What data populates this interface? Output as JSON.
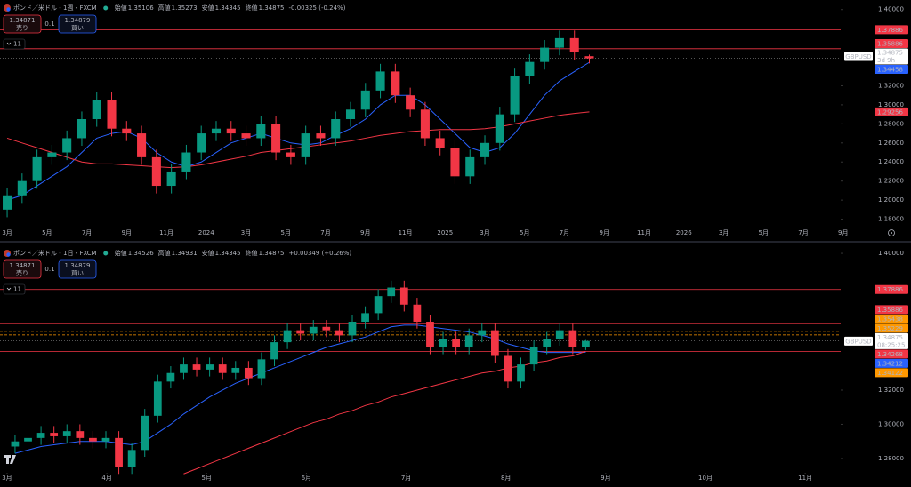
{
  "chart_data": [
    {
      "type": "candlestick",
      "title": "ポンド／米ドル・1週・FXCM",
      "ohlc_labels": [
        "始値",
        "高値",
        "安値",
        "終値"
      ],
      "ohlc_values": [
        1.35106,
        1.35273,
        1.34345,
        1.34875
      ],
      "change": "-0.00325 (-0.24%)",
      "change_color": "#f23645",
      "sell": {
        "price": 1.34871,
        "label": "売り"
      },
      "spread": 0.1,
      "buy": {
        "price": 1.34879,
        "label": "買い"
      },
      "badge": 11,
      "up_color": "#089981",
      "down_color": "#f23645",
      "x": [
        0,
        0.75,
        1.5,
        2.25,
        3,
        3.75,
        4.5,
        5.25,
        6,
        6.75,
        7.5,
        8.25,
        9,
        9.75,
        10.5,
        11.25,
        12,
        12.75,
        13.5,
        14.25,
        15,
        15.75,
        16.5,
        17.25,
        18,
        18.75,
        19.5,
        20.25,
        21,
        21.75,
        22.5,
        23.25,
        24,
        24.75,
        25.5,
        26.25,
        27,
        27.75,
        28.5,
        29.25
      ],
      "open": [
        1.19,
        1.205,
        1.22,
        1.245,
        1.25,
        1.265,
        1.285,
        1.305,
        1.275,
        1.27,
        1.245,
        1.215,
        1.23,
        1.25,
        1.27,
        1.275,
        1.27,
        1.265,
        1.28,
        1.25,
        1.245,
        1.27,
        1.265,
        1.285,
        1.295,
        1.315,
        1.335,
        1.31,
        1.295,
        1.265,
        1.255,
        1.225,
        1.245,
        1.26,
        1.29,
        1.33,
        1.345,
        1.36,
        1.37,
        1.35106
      ],
      "high": [
        1.213,
        1.228,
        1.253,
        1.258,
        1.273,
        1.293,
        1.313,
        1.313,
        1.283,
        1.278,
        1.253,
        1.238,
        1.258,
        1.278,
        1.283,
        1.283,
        1.278,
        1.288,
        1.288,
        1.258,
        1.278,
        1.278,
        1.293,
        1.303,
        1.323,
        1.343,
        1.343,
        1.318,
        1.303,
        1.273,
        1.263,
        1.253,
        1.268,
        1.298,
        1.338,
        1.353,
        1.368,
        1.378,
        1.378,
        1.35273
      ],
      "low": [
        1.182,
        1.197,
        1.212,
        1.237,
        1.242,
        1.257,
        1.277,
        1.267,
        1.262,
        1.237,
        1.207,
        1.207,
        1.222,
        1.242,
        1.262,
        1.262,
        1.257,
        1.257,
        1.242,
        1.237,
        1.237,
        1.257,
        1.257,
        1.277,
        1.287,
        1.307,
        1.302,
        1.287,
        1.257,
        1.247,
        1.217,
        1.217,
        1.237,
        1.252,
        1.282,
        1.322,
        1.337,
        1.352,
        1.347,
        1.34345
      ],
      "close": [
        1.205,
        1.22,
        1.245,
        1.25,
        1.265,
        1.285,
        1.305,
        1.275,
        1.27,
        1.245,
        1.215,
        1.23,
        1.25,
        1.27,
        1.275,
        1.27,
        1.265,
        1.28,
        1.25,
        1.245,
        1.27,
        1.265,
        1.285,
        1.295,
        1.315,
        1.335,
        1.31,
        1.295,
        1.265,
        1.255,
        1.225,
        1.245,
        1.26,
        1.29,
        1.33,
        1.345,
        1.36,
        1.37,
        1.355,
        1.34875
      ],
      "series": [
        {
          "color": "#2962ff",
          "values": [
            1.2,
            1.205,
            1.215,
            1.225,
            1.235,
            1.25,
            1.265,
            1.27,
            1.272,
            1.265,
            1.25,
            1.24,
            1.235,
            1.24,
            1.25,
            1.26,
            1.265,
            1.27,
            1.265,
            1.26,
            1.258,
            1.26,
            1.268,
            1.275,
            1.285,
            1.3,
            1.31,
            1.31,
            1.3,
            1.285,
            1.27,
            1.255,
            1.25,
            1.255,
            1.27,
            1.29,
            1.31,
            1.325,
            1.335,
            1.34458
          ]
        },
        {
          "color": "#f23645",
          "values": [
            1.265,
            1.26,
            1.255,
            1.25,
            1.245,
            1.24,
            1.238,
            1.238,
            1.237,
            1.236,
            1.235,
            1.234,
            1.235,
            1.237,
            1.24,
            1.243,
            1.246,
            1.25,
            1.252,
            1.254,
            1.256,
            1.258,
            1.26,
            1.262,
            1.265,
            1.268,
            1.27,
            1.272,
            1.273,
            1.274,
            1.274,
            1.274,
            1.275,
            1.277,
            1.28,
            1.283,
            1.286,
            1.289,
            1.291,
            1.29256
          ]
        }
      ],
      "levels": [
        {
          "value": 1.37886,
          "color": "#f23645",
          "style": "solid"
        },
        {
          "value": 1.35886,
          "color": "#f23645",
          "style": "solid"
        },
        {
          "value": 1.34458,
          "color": "#2962ff",
          "style": "none"
        },
        {
          "value": 1.29256,
          "color": "#f23645",
          "style": "none"
        }
      ],
      "current": {
        "symbol": "GBPUSD",
        "value": 1.34875,
        "countdown": "3d 9h"
      },
      "xlim": [
        -0.36,
        42.1
      ],
      "ylim": [
        1.16,
        1.41
      ],
      "xticks": [
        {
          "value": 0,
          "label": "3月"
        },
        {
          "value": 2,
          "label": "5月"
        },
        {
          "value": 4,
          "label": "7月"
        },
        {
          "value": 6,
          "label": "9月"
        },
        {
          "value": 8,
          "label": "11月"
        },
        {
          "value": 10,
          "label": "2024"
        },
        {
          "value": 12,
          "label": "3月"
        },
        {
          "value": 14,
          "label": "5月"
        },
        {
          "value": 16,
          "label": "7月"
        },
        {
          "value": 18,
          "label": "9月"
        },
        {
          "value": 20,
          "label": "11月"
        },
        {
          "value": 22,
          "label": "2025"
        },
        {
          "value": 24,
          "label": "3月"
        },
        {
          "value": 26,
          "label": "5月"
        },
        {
          "value": 28,
          "label": "7月"
        },
        {
          "value": 30,
          "label": "9月"
        },
        {
          "value": 32,
          "label": "11月"
        },
        {
          "value": 34,
          "label": "2026"
        },
        {
          "value": 36,
          "label": "3月"
        },
        {
          "value": 38,
          "label": "5月"
        },
        {
          "value": 40,
          "label": "7月"
        },
        {
          "value": 42,
          "label": "9月"
        }
      ],
      "yticks": [
        {
          "value": 1.4,
          "label": "1.40000"
        },
        {
          "value": 1.32,
          "label": "1.32000"
        },
        {
          "value": 1.3,
          "label": "1.30000"
        },
        {
          "value": 1.28,
          "label": "1.28000"
        },
        {
          "value": 1.26,
          "label": "1.26000"
        },
        {
          "value": 1.24,
          "label": "1.24000"
        },
        {
          "value": 1.22,
          "label": "1.22000"
        },
        {
          "value": 1.2,
          "label": "1.20000"
        },
        {
          "value": 1.18,
          "label": "1.18000"
        }
      ]
    },
    {
      "type": "candlestick",
      "title": "ポンド／米ドル・1日・FXCM",
      "ohlc_labels": [
        "始値",
        "高値",
        "安値",
        "終値"
      ],
      "ohlc_values": [
        1.34526,
        1.34931,
        1.34345,
        1.34875
      ],
      "change": "+0.00349 (+0.26%)",
      "change_color": "#22ab94",
      "sell": {
        "price": 1.34871,
        "label": "売り"
      },
      "spread": 0.1,
      "buy": {
        "price": 1.34879,
        "label": "買い"
      },
      "badge": 11,
      "up_color": "#089981",
      "down_color": "#f23645",
      "x": [
        0.08,
        0.21,
        0.34,
        0.47,
        0.6,
        0.73,
        0.86,
        0.99,
        1.12,
        1.25,
        1.38,
        1.51,
        1.64,
        1.77,
        1.9,
        2.03,
        2.16,
        2.29,
        2.42,
        2.55,
        2.68,
        2.81,
        2.94,
        3.07,
        3.2,
        3.33,
        3.46,
        3.59,
        3.72,
        3.85,
        3.98,
        4.11,
        4.24,
        4.37,
        4.5,
        4.63,
        4.76,
        4.89,
        5.02,
        5.15,
        5.28,
        5.41,
        5.54,
        5.67,
        5.8
      ],
      "open": [
        1.287,
        1.29,
        1.292,
        1.295,
        1.293,
        1.296,
        1.292,
        1.29,
        1.292,
        1.275,
        1.285,
        1.305,
        1.325,
        1.33,
        1.335,
        1.332,
        1.335,
        1.33,
        1.333,
        1.327,
        1.338,
        1.348,
        1.355,
        1.353,
        1.357,
        1.355,
        1.352,
        1.36,
        1.365,
        1.375,
        1.38,
        1.37,
        1.36,
        1.345,
        1.35,
        1.345,
        1.352,
        1.355,
        1.34,
        1.325,
        1.335,
        1.345,
        1.35,
        1.355,
        1.34526
      ],
      "high": [
        1.294,
        1.296,
        1.299,
        1.299,
        1.3,
        1.3,
        1.296,
        1.296,
        1.296,
        1.289,
        1.309,
        1.329,
        1.334,
        1.339,
        1.339,
        1.339,
        1.339,
        1.337,
        1.337,
        1.342,
        1.352,
        1.359,
        1.359,
        1.361,
        1.361,
        1.359,
        1.364,
        1.369,
        1.379,
        1.384,
        1.384,
        1.374,
        1.364,
        1.354,
        1.354,
        1.356,
        1.359,
        1.359,
        1.344,
        1.339,
        1.349,
        1.354,
        1.359,
        1.359,
        1.34931
      ],
      "low": [
        1.283,
        1.286,
        1.288,
        1.289,
        1.289,
        1.288,
        1.286,
        1.286,
        1.271,
        1.271,
        1.281,
        1.301,
        1.321,
        1.326,
        1.328,
        1.328,
        1.326,
        1.326,
        1.323,
        1.323,
        1.334,
        1.344,
        1.349,
        1.349,
        1.351,
        1.348,
        1.348,
        1.356,
        1.361,
        1.371,
        1.366,
        1.356,
        1.341,
        1.341,
        1.341,
        1.341,
        1.348,
        1.336,
        1.321,
        1.321,
        1.331,
        1.341,
        1.346,
        1.341,
        1.34345
      ],
      "close": [
        1.29,
        1.292,
        1.295,
        1.293,
        1.296,
        1.292,
        1.29,
        1.292,
        1.275,
        1.285,
        1.305,
        1.325,
        1.33,
        1.335,
        1.332,
        1.335,
        1.33,
        1.333,
        1.327,
        1.338,
        1.348,
        1.355,
        1.353,
        1.357,
        1.355,
        1.352,
        1.36,
        1.365,
        1.375,
        1.38,
        1.37,
        1.36,
        1.345,
        1.35,
        1.345,
        1.352,
        1.355,
        1.34,
        1.325,
        1.335,
        1.345,
        1.35,
        1.355,
        1.345,
        1.34875
      ],
      "series": [
        {
          "color": "#2962ff",
          "values": [
            1.283,
            1.285,
            1.287,
            1.288,
            1.289,
            1.29,
            1.29,
            1.29,
            1.289,
            1.288,
            1.29,
            1.295,
            1.3,
            1.306,
            1.311,
            1.316,
            1.32,
            1.324,
            1.327,
            1.33,
            1.333,
            1.336,
            1.339,
            1.342,
            1.345,
            1.347,
            1.349,
            1.351,
            1.354,
            1.357,
            1.358,
            1.358,
            1.357,
            1.356,
            1.355,
            1.354,
            1.352,
            1.35,
            1.347,
            1.345,
            1.343,
            1.342,
            1.342,
            1.342,
            1.34212
          ]
        },
        {
          "color": "#f23645",
          "values": [
            null,
            null,
            null,
            null,
            null,
            null,
            null,
            null,
            null,
            null,
            null,
            null,
            null,
            1.271,
            1.274,
            1.277,
            1.28,
            1.283,
            1.286,
            1.289,
            1.292,
            1.295,
            1.298,
            1.301,
            1.303,
            1.306,
            1.308,
            1.311,
            1.313,
            1.316,
            1.318,
            1.32,
            1.322,
            1.324,
            1.326,
            1.328,
            1.33,
            1.331,
            1.333,
            1.334,
            1.336,
            1.337,
            1.339,
            1.34,
            1.34268
          ]
        }
      ],
      "levels": [
        {
          "value": 1.37886,
          "color": "#f23645",
          "style": "solid"
        },
        {
          "value": 1.35886,
          "color": "#f23645",
          "style": "solid"
        },
        {
          "value": 1.35438,
          "color": "#ff9800",
          "style": "dashed"
        },
        {
          "value": 1.35229,
          "color": "#ff9800",
          "style": "dashed"
        },
        {
          "value": 1.34268,
          "color": "#f23645",
          "style": "solid"
        },
        {
          "value": 1.34212,
          "color": "#2962ff",
          "style": "none"
        },
        {
          "value": 1.34122,
          "color": "#ff9800",
          "style": "none"
        }
      ],
      "current": {
        "symbol": "GBPUSD",
        "value": 1.34875,
        "countdown": "08:25:25"
      },
      "xlim": [
        -0.071,
        8.4
      ],
      "ylim": [
        1.2675,
        1.4047
      ],
      "xticks": [
        {
          "value": 0,
          "label": "3月"
        },
        {
          "value": 1,
          "label": "4月"
        },
        {
          "value": 2,
          "label": "5月"
        },
        {
          "value": 3,
          "label": "6月"
        },
        {
          "value": 4,
          "label": "7月"
        },
        {
          "value": 5,
          "label": "8月"
        },
        {
          "value": 6,
          "label": "9月"
        },
        {
          "value": 7,
          "label": "10月"
        },
        {
          "value": 8,
          "label": "11月"
        }
      ],
      "yticks": [
        {
          "value": 1.4,
          "label": "1.40000"
        },
        {
          "value": 1.32,
          "label": "1.32000"
        },
        {
          "value": 1.3,
          "label": "1.30000"
        },
        {
          "value": 1.28,
          "label": "1.28000"
        }
      ]
    }
  ]
}
